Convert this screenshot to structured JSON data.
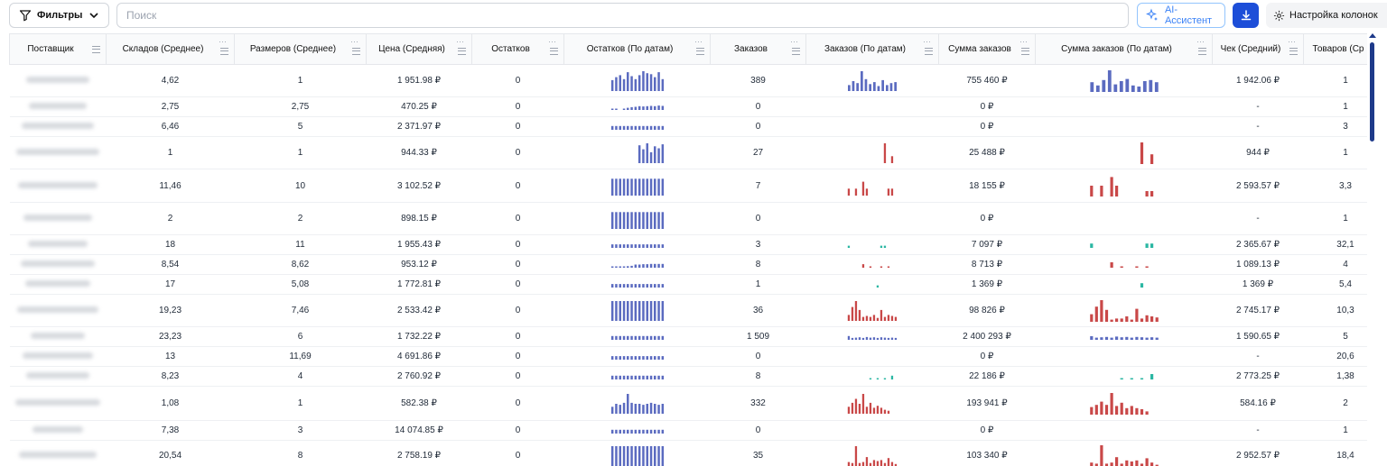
{
  "toolbar": {
    "filter_label": "Фильтры",
    "search_placeholder": "Поиск",
    "ai_label": "AI-Ассистент",
    "columns_label": "Настройка колонок"
  },
  "columns": [
    {
      "label": "Поставщик"
    },
    {
      "label": "Складов (Среднее)"
    },
    {
      "label": "Размеров (Среднее)"
    },
    {
      "label": "Цена (Средняя)"
    },
    {
      "label": "Остатков"
    },
    {
      "label": "Остатков (По датам)"
    },
    {
      "label": "Заказов"
    },
    {
      "label": "Заказов (По датам)"
    },
    {
      "label": "Сумма заказов"
    },
    {
      "label": "Сумма заказов (По датам)"
    },
    {
      "label": "Чек (Средний)"
    },
    {
      "label": "Товаров (Ср"
    }
  ],
  "colors": {
    "blue": "#5b6bc0",
    "red": "#c94848",
    "teal": "#2bb7a3"
  },
  "rows": [
    {
      "h": 36,
      "warehouses": "4,62",
      "sizes": "1",
      "price": "1 951.98 ₽",
      "stock": "0",
      "stock_spark": [
        0.55,
        0.7,
        0.8,
        0.6,
        0.95,
        0.75,
        0.6,
        0.8,
        1.0,
        0.9,
        0.85,
        0.7,
        0.95,
        0.6
      ],
      "orders": "389",
      "orders_spark": {
        "color": "blue",
        "v": [
          0.3,
          0.5,
          0.4,
          1.0,
          0.6,
          0.35,
          0.45,
          0.25,
          0.55,
          0.3,
          0.4,
          0.45
        ]
      },
      "orders_sum": "755 460 ₽",
      "sum_spark": {
        "color": "blue",
        "v": [
          0.45,
          0.3,
          0.55,
          1.0,
          0.35,
          0.5,
          0.6,
          0.3,
          0.25,
          0.5,
          0.55,
          0.45
        ]
      },
      "check": "1 942.06 ₽",
      "goods": "1"
    },
    {
      "h": 22,
      "warehouses": "2,75",
      "sizes": "2,75",
      "price": "470.25 ₽",
      "stock": "0",
      "stock_spark": [
        0.15,
        0.2,
        0,
        0.15,
        0.35,
        0.45,
        0.5,
        0.6,
        0.55,
        0.6,
        0.65,
        0.6,
        0.7,
        0.65
      ],
      "orders": "0",
      "orders_spark": null,
      "orders_sum": "0 ₽",
      "sum_spark": null,
      "check": "-",
      "goods": "1"
    },
    {
      "h": 22,
      "warehouses": "6,46",
      "sizes": "5",
      "price": "2 371.97 ₽",
      "stock": "0",
      "stock_spark": [
        0.6,
        0.6,
        0.6,
        0.6,
        0.6,
        0.6,
        0.6,
        0.6,
        0.6,
        0.6,
        0.6,
        0.6,
        0.6,
        0.6
      ],
      "orders": "0",
      "orders_spark": null,
      "orders_sum": "0 ₽",
      "sum_spark": null,
      "check": "-",
      "goods": "3"
    },
    {
      "h": 36,
      "warehouses": "1",
      "sizes": "1",
      "price": "944.33 ₽",
      "stock": "0",
      "stock_spark": [
        0,
        0,
        0,
        0,
        0,
        0,
        0,
        0.9,
        0.7,
        1.0,
        0.55,
        0.85,
        0.75,
        0.95
      ],
      "orders": "27",
      "orders_spark": {
        "color": "red",
        "v": [
          0,
          0,
          0,
          0,
          0,
          0,
          0,
          0,
          0,
          0,
          1.0,
          0,
          0.35,
          0
        ]
      },
      "orders_sum": "25 488 ₽",
      "sum_spark": {
        "color": "red",
        "v": [
          0,
          0,
          0,
          0,
          0,
          0,
          0,
          0,
          0,
          0,
          1.0,
          0,
          0.45,
          0
        ]
      },
      "check": "944 ₽",
      "goods": "1"
    },
    {
      "h": 37,
      "warehouses": "11,46",
      "sizes": "10",
      "price": "3 102.52 ₽",
      "stock": "0",
      "stock_spark": [
        0.85,
        0.85,
        0.85,
        0.85,
        0.85,
        0.85,
        0.85,
        0.85,
        0.85,
        0.85,
        0.85,
        0.85,
        0.85,
        0.85
      ],
      "orders": "7",
      "orders_spark": {
        "color": "red",
        "v": [
          0.35,
          0,
          0.35,
          0,
          0.7,
          0.35,
          0,
          0,
          0,
          0,
          0,
          0.35,
          0.35,
          0
        ]
      },
      "orders_sum": "18 155 ₽",
      "sum_spark": {
        "color": "red",
        "v": [
          0.5,
          0,
          0.5,
          0,
          0.9,
          0.5,
          0,
          0,
          0,
          0,
          0,
          0.25,
          0.25,
          0
        ]
      },
      "check": "2 593.57 ₽",
      "goods": "3,3"
    },
    {
      "h": 36,
      "warehouses": "2",
      "sizes": "2",
      "price": "898.15 ₽",
      "stock": "0",
      "stock_spark": [
        0.85,
        0.85,
        0.85,
        0.85,
        0.85,
        0.85,
        0.85,
        0.85,
        0.85,
        0.85,
        0.85,
        0.85,
        0.85,
        0.85
      ],
      "orders": "0",
      "orders_spark": null,
      "orders_sum": "0 ₽",
      "sum_spark": null,
      "check": "-",
      "goods": "1"
    },
    {
      "h": 22,
      "warehouses": "18",
      "sizes": "11",
      "price": "1 955.43 ₽",
      "stock": "0",
      "stock_spark": [
        0.55,
        0.55,
        0.55,
        0.55,
        0.55,
        0.55,
        0.55,
        0.55,
        0.55,
        0.55,
        0.55,
        0.55,
        0.55,
        0.55
      ],
      "orders": "3",
      "orders_spark": {
        "color": "teal",
        "v": [
          0.35,
          0,
          0,
          0,
          0,
          0,
          0,
          0,
          0,
          0.35,
          0.35,
          0,
          0,
          0
        ]
      },
      "orders_sum": "7 097 ₽",
      "sum_spark": {
        "color": "teal",
        "v": [
          0.6,
          0,
          0,
          0,
          0,
          0,
          0,
          0,
          0,
          0,
          0,
          0.6,
          0.6,
          0
        ]
      },
      "check": "2 365.67 ₽",
      "goods": "32,1"
    },
    {
      "h": 22,
      "warehouses": "8,54",
      "sizes": "8,62",
      "price": "953.12 ₽",
      "stock": "0",
      "stock_spark": [
        0.15,
        0.15,
        0.2,
        0.2,
        0.25,
        0.3,
        0.5,
        0.5,
        0.55,
        0.55,
        0.6,
        0.6,
        0.6,
        0.6
      ],
      "orders": "8",
      "orders_spark": {
        "color": "red",
        "v": [
          0,
          0,
          0,
          0,
          0.55,
          0,
          0.1,
          0,
          0,
          0.1,
          0,
          0.1,
          0,
          0
        ]
      },
      "orders_sum": "8 713 ₽",
      "sum_spark": {
        "color": "red",
        "v": [
          0,
          0,
          0,
          0,
          0.75,
          0,
          0.1,
          0,
          0,
          0.1,
          0,
          0.1,
          0,
          0
        ]
      },
      "check": "1 089.13 ₽",
      "goods": "4"
    },
    {
      "h": 22,
      "warehouses": "17",
      "sizes": "5,08",
      "price": "1 772.81 ₽",
      "stock": "0",
      "stock_spark": [
        0.55,
        0.55,
        0.55,
        0.55,
        0.55,
        0.55,
        0.55,
        0.55,
        0.55,
        0.55,
        0.55,
        0.55,
        0.55,
        0.55
      ],
      "orders": "1",
      "orders_spark": {
        "color": "teal",
        "v": [
          0,
          0,
          0,
          0,
          0,
          0,
          0,
          0,
          0.35,
          0,
          0,
          0,
          0,
          0
        ]
      },
      "orders_sum": "1 369 ₽",
      "sum_spark": {
        "color": "teal",
        "v": [
          0,
          0,
          0,
          0,
          0,
          0,
          0,
          0,
          0,
          0,
          0.6,
          0,
          0,
          0
        ]
      },
      "check": "1 369 ₽",
      "goods": "5,4"
    },
    {
      "h": 36,
      "warehouses": "19,23",
      "sizes": "7,46",
      "price": "2 533.42 ₽",
      "stock": "0",
      "stock_spark": [
        1.0,
        1.0,
        1.0,
        1.0,
        1.0,
        1.0,
        1.0,
        1.0,
        1.0,
        1.0,
        1.0,
        1.0,
        1.0,
        1.0
      ],
      "orders": "36",
      "orders_spark": {
        "color": "red",
        "v": [
          0.3,
          0.7,
          1.0,
          0.55,
          0.2,
          0.25,
          0.2,
          0.3,
          0.15,
          0.55,
          0.2,
          0.3,
          0.25,
          0.2
        ]
      },
      "orders_sum": "98 826 ₽",
      "sum_spark": {
        "color": "red",
        "v": [
          0.35,
          0.7,
          1.0,
          0.55,
          0.1,
          0.15,
          0.15,
          0.25,
          0.1,
          0.6,
          0.15,
          0.3,
          0.25,
          0.2
        ]
      },
      "check": "2 745.17 ₽",
      "goods": "10,3"
    },
    {
      "h": 22,
      "warehouses": "23,23",
      "sizes": "6",
      "price": "1 732.22 ₽",
      "stock": "0",
      "stock_spark": [
        0.6,
        0.6,
        0.6,
        0.6,
        0.6,
        0.6,
        0.6,
        0.6,
        0.6,
        0.6,
        0.6,
        0.6,
        0.6,
        0.6
      ],
      "orders": "1 509",
      "orders_spark": {
        "color": "blue",
        "v": [
          0.6,
          0.3,
          0.35,
          0.4,
          0.3,
          0.45,
          0.35,
          0.4,
          0.3,
          0.4,
          0.35,
          0.3,
          0.35,
          0.3
        ]
      },
      "orders_sum": "2 400 293 ₽",
      "sum_spark": {
        "color": "blue",
        "v": [
          0.5,
          0.3,
          0.35,
          0.4,
          0.3,
          0.45,
          0.35,
          0.4,
          0.3,
          0.4,
          0.35,
          0.3,
          0.35,
          0.3
        ]
      },
      "check": "1 590.65 ₽",
      "goods": "5"
    },
    {
      "h": 22,
      "warehouses": "13",
      "sizes": "11,69",
      "price": "4 691.86 ₽",
      "stock": "0",
      "stock_spark": [
        0.55,
        0.55,
        0.55,
        0.55,
        0.55,
        0.55,
        0.55,
        0.55,
        0.55,
        0.55,
        0.55,
        0.55,
        0.55,
        0.55
      ],
      "orders": "0",
      "orders_spark": null,
      "orders_sum": "0 ₽",
      "sum_spark": null,
      "check": "-",
      "goods": "20,6"
    },
    {
      "h": 22,
      "warehouses": "8,23",
      "sizes": "4",
      "price": "2 760.92 ₽",
      "stock": "0",
      "stock_spark": [
        0.6,
        0.6,
        0.6,
        0.6,
        0.6,
        0.6,
        0.6,
        0.6,
        0.6,
        0.6,
        0.6,
        0.6,
        0.6,
        0.6
      ],
      "orders": "8",
      "orders_spark": {
        "color": "teal",
        "v": [
          0,
          0,
          0,
          0,
          0,
          0,
          0.1,
          0,
          0.1,
          0,
          0.1,
          0,
          0.6,
          0
        ]
      },
      "orders_sum": "22 186 ₽",
      "sum_spark": {
        "color": "teal",
        "v": [
          0,
          0,
          0,
          0,
          0,
          0,
          0.1,
          0,
          0.1,
          0,
          0.1,
          0,
          0.75,
          0
        ]
      },
      "check": "2 773.25 ₽",
      "goods": "1,38"
    },
    {
      "h": 38,
      "warehouses": "1,08",
      "sizes": "1",
      "price": "582.38 ₽",
      "stock": "0",
      "stock_spark": [
        0.35,
        0.5,
        0.45,
        0.55,
        1.0,
        0.55,
        0.5,
        0.5,
        0.45,
        0.5,
        0.55,
        0.5,
        0.45,
        0.5
      ],
      "orders": "332",
      "orders_spark": {
        "color": "red",
        "v": [
          0.35,
          0.55,
          0.75,
          0.5,
          1.0,
          0.35,
          0.55,
          0.3,
          0.4,
          0.3,
          0.2,
          0.15,
          0,
          0
        ]
      },
      "orders_sum": "193 941 ₽",
      "sum_spark": {
        "color": "red",
        "v": [
          0.35,
          0.45,
          0.6,
          0.45,
          1.0,
          0.4,
          0.55,
          0.3,
          0.4,
          0.3,
          0.25,
          0.15,
          0,
          0
        ]
      },
      "check": "584.16 ₽",
      "goods": "2"
    },
    {
      "h": 22,
      "warehouses": "7,38",
      "sizes": "3",
      "price": "14 074.85 ₽",
      "stock": "0",
      "stock_spark": [
        0.6,
        0.6,
        0.6,
        0.6,
        0.6,
        0.6,
        0.6,
        0.6,
        0.6,
        0.6,
        0.6,
        0.6,
        0.6,
        0.6
      ],
      "orders": "0",
      "orders_spark": null,
      "orders_sum": "0 ₽",
      "sum_spark": null,
      "check": "-",
      "goods": "1"
    },
    {
      "h": 34,
      "warehouses": "20,54",
      "sizes": "8",
      "price": "2 758.19 ₽",
      "stock": "0",
      "stock_spark": [
        1.0,
        1.0,
        1.0,
        1.0,
        1.0,
        1.0,
        1.0,
        1.0,
        1.0,
        1.0,
        1.0,
        1.0,
        1.0,
        1.0
      ],
      "orders": "35",
      "orders_spark": {
        "color": "red",
        "v": [
          0.2,
          0.15,
          1.0,
          0.15,
          0.2,
          0.45,
          0.15,
          0.3,
          0.25,
          0.3,
          0.15,
          0.4,
          0.2,
          0.1
        ]
      },
      "orders_sum": "103 340 ₽",
      "sum_spark": {
        "color": "red",
        "v": [
          0.2,
          0.15,
          1.0,
          0.15,
          0.2,
          0.45,
          0.15,
          0.3,
          0.25,
          0.3,
          0.15,
          0.4,
          0.2,
          0.1
        ]
      },
      "check": "2 952.57 ₽",
      "goods": "18,4"
    }
  ]
}
